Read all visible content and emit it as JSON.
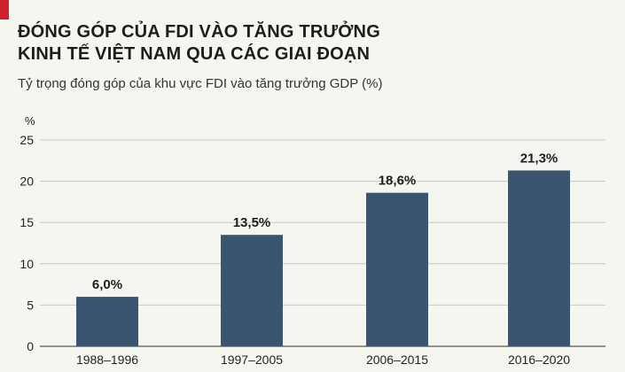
{
  "header": {
    "title_line1": "ĐÓNG GÓP CỦA FDI VÀO TĂNG TRƯỞNG",
    "title_line2": "KINH TẾ VIỆT NAM QUA CÁC GIAI ĐOẠN",
    "subtitle": "Tỷ trọng đóng góp của khu vực FDI vào tăng trưởng GDP (%)"
  },
  "colors": {
    "accent": "#d0202a",
    "bar": "#3b5570",
    "grid": "#c9c9c4",
    "axis": "#555555"
  },
  "chart_data": {
    "type": "bar",
    "title": "ĐÓNG GÓP CỦA FDI VÀO TĂNG TRƯỞNG KINH TẾ VIỆT NAM QUA CÁC GIAI ĐOẠN",
    "subtitle": "Tỷ trọng đóng góp của khu vực FDI vào tăng trưởng GDP (%)",
    "y_unit": "%",
    "categories": [
      "1988–1996",
      "1997–2005",
      "2006–2015",
      "2016–2020"
    ],
    "values": [
      6.0,
      13.5,
      18.6,
      21.3
    ],
    "value_labels": [
      "6,0%",
      "13,5%",
      "18,6%",
      "21,3%"
    ],
    "yticks": [
      0,
      5,
      10,
      15,
      20,
      25
    ],
    "ylim": [
      0,
      25
    ],
    "grid": true,
    "legend": "none"
  }
}
